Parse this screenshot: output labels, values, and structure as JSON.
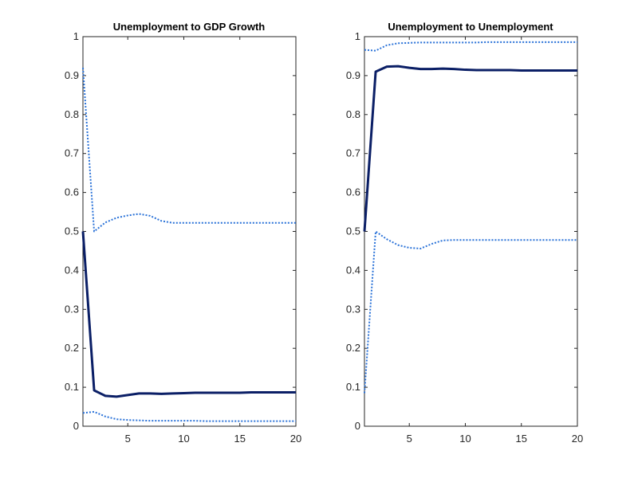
{
  "chart_data": [
    {
      "type": "line",
      "title": "Unemployment to GDP Growth",
      "xlabel": "",
      "ylabel": "",
      "xlim": [
        1,
        20
      ],
      "ylim": [
        0,
        1
      ],
      "xticks": [
        5,
        10,
        15,
        20
      ],
      "yticks": [
        0,
        0.1,
        0.2,
        0.3,
        0.4,
        0.5,
        0.6,
        0.7,
        0.8,
        0.9,
        1
      ],
      "grid": false,
      "x": [
        1,
        2,
        3,
        4,
        5,
        6,
        7,
        8,
        9,
        10,
        11,
        12,
        13,
        14,
        15,
        16,
        17,
        18,
        19,
        20
      ],
      "series": [
        {
          "style": "solid",
          "color": "#0b1f66",
          "values": [
            0.5,
            0.092,
            0.078,
            0.076,
            0.08,
            0.084,
            0.084,
            0.083,
            0.084,
            0.085,
            0.086,
            0.086,
            0.086,
            0.086,
            0.086,
            0.087,
            0.087,
            0.087,
            0.087,
            0.087
          ]
        },
        {
          "style": "dotted",
          "color": "#2a72d8",
          "values": [
            0.92,
            0.5,
            0.523,
            0.535,
            0.541,
            0.545,
            0.54,
            0.527,
            0.522,
            0.522,
            0.522,
            0.522,
            0.522,
            0.522,
            0.522,
            0.522,
            0.522,
            0.522,
            0.522,
            0.522
          ]
        },
        {
          "style": "dotted",
          "color": "#2a72d8",
          "values": [
            0.034,
            0.037,
            0.025,
            0.018,
            0.016,
            0.015,
            0.014,
            0.014,
            0.014,
            0.014,
            0.014,
            0.013,
            0.013,
            0.013,
            0.013,
            0.013,
            0.013,
            0.013,
            0.013,
            0.013
          ]
        }
      ]
    },
    {
      "type": "line",
      "title": "Unemployment to Unemployment",
      "xlabel": "",
      "ylabel": "",
      "xlim": [
        1,
        20
      ],
      "ylim": [
        0,
        1
      ],
      "xticks": [
        5,
        10,
        15,
        20
      ],
      "yticks": [
        0,
        0.1,
        0.2,
        0.3,
        0.4,
        0.5,
        0.6,
        0.7,
        0.8,
        0.9,
        1
      ],
      "grid": false,
      "x": [
        1,
        2,
        3,
        4,
        5,
        6,
        7,
        8,
        9,
        10,
        11,
        12,
        13,
        14,
        15,
        16,
        17,
        18,
        19,
        20
      ],
      "series": [
        {
          "style": "solid",
          "color": "#0b1f66",
          "values": [
            0.5,
            0.91,
            0.923,
            0.924,
            0.92,
            0.917,
            0.917,
            0.918,
            0.917,
            0.915,
            0.914,
            0.914,
            0.914,
            0.914,
            0.913,
            0.913,
            0.913,
            0.913,
            0.913,
            0.913
          ]
        },
        {
          "style": "dotted",
          "color": "#2a72d8",
          "values": [
            0.966,
            0.964,
            0.978,
            0.983,
            0.984,
            0.985,
            0.985,
            0.985,
            0.985,
            0.985,
            0.985,
            0.986,
            0.986,
            0.986,
            0.986,
            0.986,
            0.986,
            0.986,
            0.986,
            0.986
          ]
        },
        {
          "style": "dotted",
          "color": "#2a72d8",
          "values": [
            0.085,
            0.5,
            0.48,
            0.465,
            0.458,
            0.456,
            0.468,
            0.477,
            0.478,
            0.478,
            0.478,
            0.478,
            0.478,
            0.478,
            0.478,
            0.478,
            0.478,
            0.478,
            0.478,
            0.478
          ]
        }
      ]
    }
  ]
}
